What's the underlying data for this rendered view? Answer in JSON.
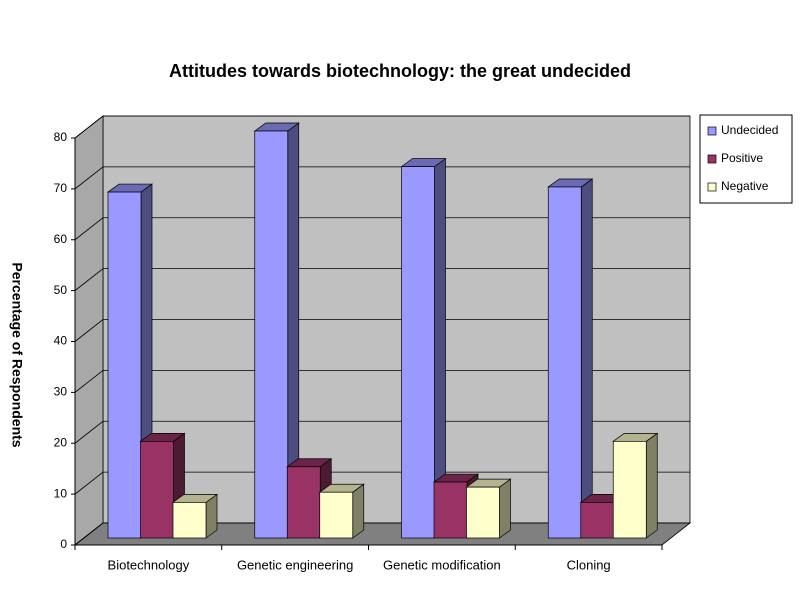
{
  "chart_data": {
    "type": "bar3d",
    "title": "Attitudes towards biotechnology: the great undecided",
    "y_label": "Percentage of Respondents",
    "categories": [
      "Biotechnology",
      "Genetic engineering",
      "Genetic modification",
      "Cloning"
    ],
    "series": [
      {
        "name": "Undecided",
        "color": "#9999ff",
        "values": [
          68,
          80,
          73,
          69
        ]
      },
      {
        "name": "Positive",
        "color": "#993366",
        "values": [
          19,
          14,
          11,
          7
        ]
      },
      {
        "name": "Negative",
        "color": "#ffffcc",
        "values": [
          7,
          9,
          10,
          19
        ]
      }
    ],
    "ylim": [
      0,
      80
    ],
    "yticks": [
      0,
      10,
      20,
      30,
      40,
      50,
      60,
      70,
      80
    ],
    "grid": true,
    "legend": "right"
  }
}
